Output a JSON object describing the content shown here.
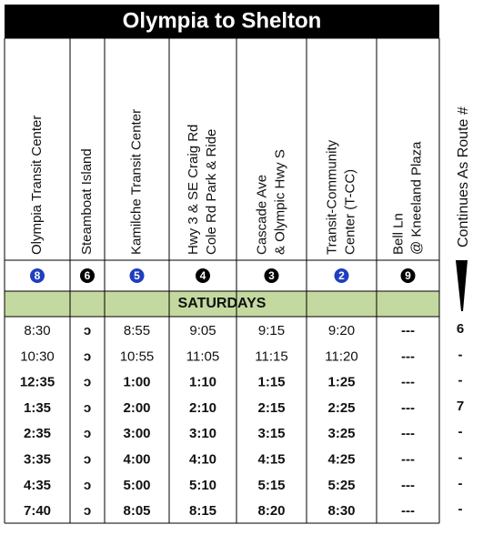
{
  "header": {
    "title": "Olympia to Shelton"
  },
  "columns": [
    {
      "label": [
        "Olympia Transit Center"
      ],
      "route": "8",
      "route_color": "#1f3fbf"
    },
    {
      "label": [
        "Steamboat Island"
      ],
      "route": "6",
      "route_color": "#000000"
    },
    {
      "label": [
        "Kamilche Transit Center"
      ],
      "route": "5",
      "route_color": "#1f3fbf"
    },
    {
      "label": [
        "Hwy 3 &  SE Craig Rd",
        "Cole Rd Park & Ride"
      ],
      "route": "4",
      "route_color": "#000000"
    },
    {
      "label": [
        "Cascade Ave",
        "& Olympic Hwy S"
      ],
      "route": "3",
      "route_color": "#000000"
    },
    {
      "label": [
        "Transit-Community",
        "Center (T-CC)"
      ],
      "route": "2",
      "route_color": "#1f3fbf"
    },
    {
      "label": [
        "Bell Ln",
        "@ Kneeland Plaza"
      ],
      "route": "9",
      "route_color": "#000000"
    }
  ],
  "section": "SATURDAYS",
  "continues": {
    "label": "Continues As Route #",
    "values": [
      "6",
      "-",
      "-",
      "7",
      "-",
      "-",
      "-",
      "-"
    ]
  },
  "rows": [
    [
      "8:30",
      "ↄ",
      "8:55",
      "9:05",
      "9:15",
      "9:20",
      "---"
    ],
    [
      "10:30",
      "ↄ",
      "10:55",
      "11:05",
      "11:15",
      "11:20",
      "---"
    ],
    [
      "12:35",
      "ↄ",
      "1:00",
      "1:10",
      "1:15",
      "1:25",
      "---"
    ],
    [
      "1:35",
      "ↄ",
      "2:00",
      "2:10",
      "2:15",
      "2:25",
      "---"
    ],
    [
      "2:35",
      "ↄ",
      "3:00",
      "3:10",
      "3:15",
      "3:25",
      "---"
    ],
    [
      "3:35",
      "ↄ",
      "4:00",
      "4:10",
      "4:15",
      "4:25",
      "---"
    ],
    [
      "4:35",
      "ↄ",
      "5:00",
      "5:10",
      "5:15",
      "5:25",
      "---"
    ],
    [
      "7:40",
      "ↄ",
      "8:05",
      "8:15",
      "8:20",
      "8:30",
      "---"
    ]
  ]
}
